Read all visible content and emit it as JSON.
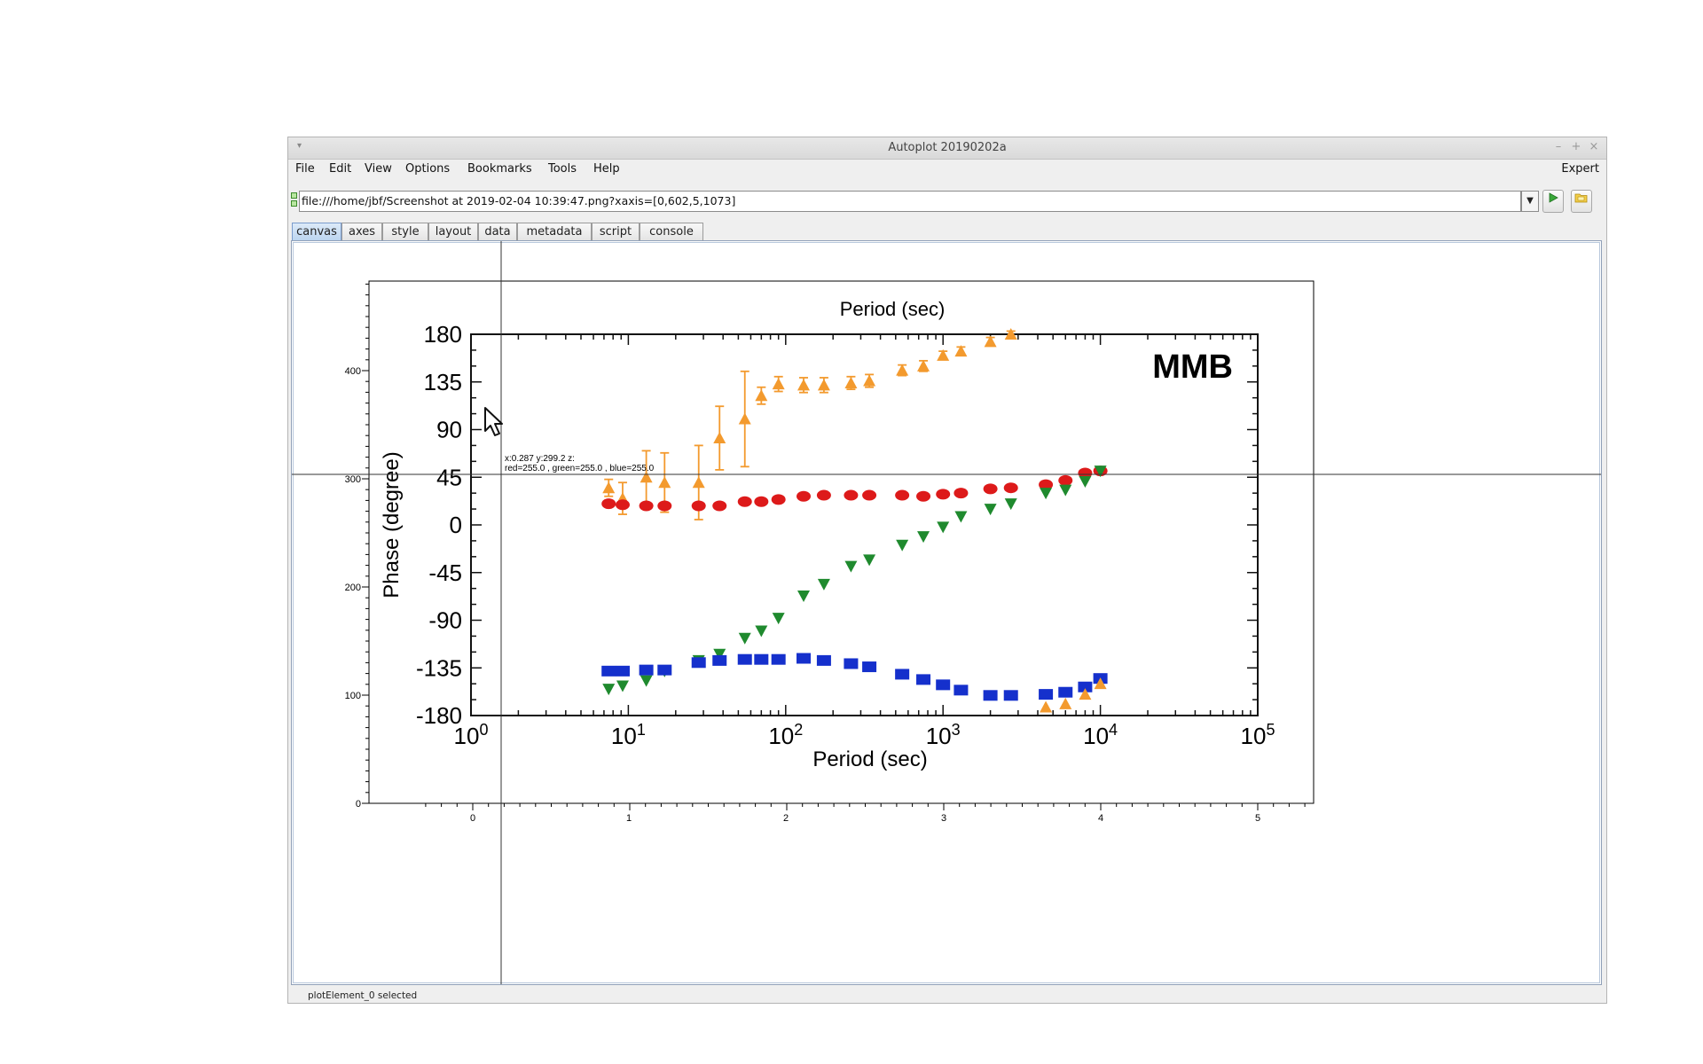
{
  "window": {
    "title": "Autoplot 20190202a",
    "controls": {
      "minimize": "–",
      "maximize": "+",
      "close": "×"
    }
  },
  "menubar": {
    "items": [
      "File",
      "Edit",
      "View",
      "Options",
      "Bookmarks",
      "Tools",
      "Help"
    ],
    "expert": "Expert"
  },
  "url": {
    "value": "file:///home/jbf/Screenshot at 2019-02-04 10:39:47.png?xaxis=[0,602,5,1073]"
  },
  "tabs": [
    {
      "label": "canvas",
      "active": true
    },
    {
      "label": "axes",
      "active": false
    },
    {
      "label": "style",
      "active": false
    },
    {
      "label": "layout",
      "active": false
    },
    {
      "label": "data",
      "active": false
    },
    {
      "label": "metadata",
      "active": false
    },
    {
      "label": "script",
      "active": false
    },
    {
      "label": "console",
      "active": false
    }
  ],
  "outer_axes": {
    "x_ticks": [
      "0",
      "1",
      "2",
      "3",
      "4",
      "5"
    ],
    "y_ticks": [
      "0",
      "100",
      "200",
      "300",
      "400"
    ]
  },
  "crosshair": {
    "line1": "x:0.287  y:299.2  z:",
    "line2": "red=255.0 , green=255.0 , blue=255.0"
  },
  "status": {
    "text": "plotElement_0 selected"
  },
  "colors": {
    "orange": "#f39a2e",
    "red": "#dd1a1a",
    "green": "#1f8a2e",
    "blue": "#1530cc",
    "tab_active": "#bcd5f0"
  },
  "chart_data": {
    "type": "scatter",
    "title": "Period (sec)",
    "label": "MMB",
    "xlabel": "Period (sec)",
    "ylabel": "Phase (degree)",
    "x_scale": "log",
    "xlim": [
      1,
      100000
    ],
    "ylim": [
      -180,
      180
    ],
    "x_tick_labels": [
      "10^0",
      "10^1",
      "10^2",
      "10^3",
      "10^4",
      "10^5"
    ],
    "y_tick_labels": [
      "180",
      "135",
      "90",
      "45",
      "0",
      "-45",
      "-90",
      "-135",
      "-180"
    ],
    "series": [
      {
        "color": "orange",
        "marker": "triangle-up",
        "x": [
          7.5,
          9.2,
          13,
          17,
          28,
          38,
          55,
          70,
          90,
          130,
          175,
          260,
          340,
          550,
          750,
          1000,
          1300,
          2000,
          2700
        ],
        "y": [
          35,
          25,
          45,
          40,
          40,
          82,
          100,
          122,
          133,
          132,
          132,
          134,
          136,
          146,
          150,
          160,
          164,
          173,
          180
        ],
        "err": [
          8,
          15,
          25,
          28,
          35,
          30,
          45,
          8,
          7,
          7,
          7,
          6,
          6,
          5,
          5,
          4,
          4,
          4,
          3
        ]
      },
      {
        "color": "red",
        "marker": "circle",
        "x": [
          7.5,
          9.2,
          13,
          17,
          28,
          38,
          55,
          70,
          90,
          130,
          175,
          260,
          340,
          550,
          750,
          1000,
          1300,
          2000,
          2700,
          4500,
          6000,
          8000,
          10000
        ],
        "y": [
          20,
          19,
          18,
          18,
          18,
          18,
          22,
          22,
          24,
          27,
          28,
          28,
          28,
          28,
          27,
          29,
          30,
          34,
          35,
          38,
          42,
          49,
          51
        ]
      },
      {
        "color": "green",
        "marker": "triangle-down",
        "x": [
          7.5,
          9.2,
          13,
          17,
          28,
          38,
          55,
          70,
          90,
          130,
          175,
          260,
          340,
          550,
          750,
          1000,
          1300,
          2000,
          2700,
          4500,
          6000,
          8000,
          10000
        ],
        "y": [
          -155,
          -152,
          -147,
          -138,
          -128,
          -122,
          -107,
          -100,
          -88,
          -67,
          -56,
          -39,
          -33,
          -19,
          -11,
          -2,
          8,
          15,
          20,
          30,
          33,
          41,
          51
        ]
      },
      {
        "color": "blue",
        "marker": "square",
        "x": [
          7.5,
          9.2,
          13,
          17,
          28,
          38,
          55,
          70,
          90,
          130,
          175,
          260,
          340,
          550,
          750,
          1000,
          1300,
          2000,
          2700,
          4500,
          6000,
          8000,
          10000
        ],
        "y": [
          -138,
          -138,
          -137,
          -137,
          -130,
          -128,
          -127,
          -127,
          -127,
          -126,
          -128,
          -131,
          -134,
          -141,
          -146,
          -151,
          -156,
          -161,
          -161,
          -160,
          -158,
          -153,
          -145
        ]
      },
      {
        "color": "orange",
        "marker": "triangle-up",
        "x": [
          4500,
          6000,
          8000,
          10000
        ],
        "y": [
          -172,
          -169,
          -160,
          -150
        ]
      }
    ]
  }
}
